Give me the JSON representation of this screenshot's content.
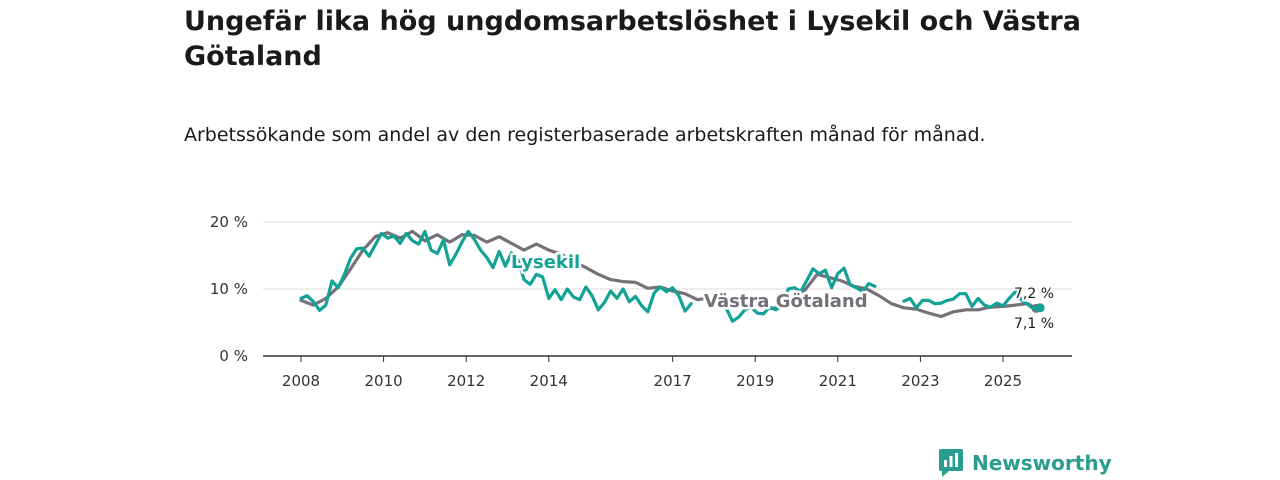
{
  "title": "Ungefär lika hög ungdomsarbetslöshet i Lysekil och Västra Götaland",
  "subtitle": "Arbetssökande som andel av den registerbaserade arbetskraften månad för månad.",
  "brand": {
    "name": "Newsworthy"
  },
  "colors": {
    "lysekil": "#12a296",
    "vastra": "#767178",
    "grid": "#dddddd",
    "axis": "#333333",
    "brand": "#2a9d8f"
  },
  "chart_data": {
    "type": "line",
    "title": "Ungefär lika hög ungdomsarbetslöshet i Lysekil och Västra Götaland",
    "subtitle": "Arbetssökande som andel av den registerbaserade arbetskraften månad för månad.",
    "xlabel": "",
    "ylabel": "",
    "ylim": [
      0,
      20
    ],
    "xlim": [
      2007.2,
      2026.5
    ],
    "y_ticks": [
      {
        "value": 0,
        "label": "0 %"
      },
      {
        "value": 10,
        "label": "10 %"
      },
      {
        "value": 20,
        "label": "20 %"
      }
    ],
    "x_ticks": [
      {
        "value": 2008,
        "label": "2008"
      },
      {
        "value": 2010,
        "label": "2010"
      },
      {
        "value": 2012,
        "label": "2012"
      },
      {
        "value": 2014,
        "label": "2014"
      },
      {
        "value": 2017,
        "label": "2017"
      },
      {
        "value": 2019,
        "label": "2019"
      },
      {
        "value": 2021,
        "label": "2021"
      },
      {
        "value": 2023,
        "label": "2023"
      },
      {
        "value": 2025,
        "label": "2025"
      }
    ],
    "series": [
      {
        "name": "Västra Götaland",
        "color": "#767178",
        "end_label": "7,1 %",
        "points": [
          [
            2008.0,
            8.3
          ],
          [
            2008.3,
            7.6
          ],
          [
            2008.6,
            8.6
          ],
          [
            2008.9,
            10.3
          ],
          [
            2009.2,
            13.0
          ],
          [
            2009.5,
            15.8
          ],
          [
            2009.8,
            17.8
          ],
          [
            2010.1,
            18.4
          ],
          [
            2010.4,
            17.6
          ],
          [
            2010.7,
            18.6
          ],
          [
            2011.0,
            17.2
          ],
          [
            2011.3,
            18.1
          ],
          [
            2011.6,
            17.0
          ],
          [
            2011.9,
            18.1
          ],
          [
            2012.2,
            18.0
          ],
          [
            2012.5,
            17.0
          ],
          [
            2012.8,
            17.8
          ],
          [
            2013.1,
            16.8
          ],
          [
            2013.4,
            15.8
          ],
          [
            2013.7,
            16.7
          ],
          [
            2014.0,
            15.8
          ],
          [
            2014.3,
            15.2
          ],
          [
            2014.6,
            14.1
          ],
          [
            2014.9,
            13.2
          ],
          [
            2015.2,
            12.2
          ],
          [
            2015.5,
            11.4
          ],
          [
            2015.8,
            11.1
          ],
          [
            2016.1,
            11.0
          ],
          [
            2016.4,
            10.1
          ],
          [
            2016.7,
            10.3
          ],
          [
            2017.0,
            9.7
          ],
          [
            2017.3,
            9.3
          ],
          [
            2017.6,
            8.4
          ],
          [
            2017.9,
            8.7
          ]
        ],
        "points_2": [
          [
            2019.3,
            7.1
          ],
          [
            2019.6,
            7.2
          ],
          [
            2019.9,
            8.2
          ],
          [
            2020.2,
            9.8
          ],
          [
            2020.5,
            12.2
          ],
          [
            2020.8,
            11.7
          ],
          [
            2021.1,
            11.2
          ],
          [
            2021.4,
            10.4
          ],
          [
            2021.7,
            10.0
          ],
          [
            2022.0,
            9.0
          ],
          [
            2022.3,
            7.8
          ],
          [
            2022.6,
            7.2
          ],
          [
            2022.9,
            7.0
          ],
          [
            2023.2,
            6.4
          ],
          [
            2023.5,
            5.9
          ],
          [
            2023.8,
            6.6
          ],
          [
            2024.1,
            6.9
          ],
          [
            2024.4,
            6.9
          ],
          [
            2024.7,
            7.3
          ],
          [
            2025.0,
            7.4
          ],
          [
            2025.3,
            7.6
          ],
          [
            2025.6,
            7.8
          ],
          [
            2025.8,
            7.1
          ]
        ]
      },
      {
        "name": "Lysekil",
        "color": "#12a296",
        "end_label": "7,2 %",
        "points": [
          [
            2008.0,
            8.6
          ],
          [
            2008.15,
            9.0
          ],
          [
            2008.3,
            8.1
          ],
          [
            2008.45,
            6.8
          ],
          [
            2008.6,
            7.6
          ],
          [
            2008.75,
            11.2
          ],
          [
            2008.9,
            10.2
          ],
          [
            2009.05,
            12.2
          ],
          [
            2009.2,
            14.6
          ],
          [
            2009.35,
            16.0
          ],
          [
            2009.5,
            16.1
          ],
          [
            2009.65,
            14.9
          ],
          [
            2009.8,
            16.6
          ],
          [
            2009.95,
            18.3
          ],
          [
            2010.1,
            17.6
          ],
          [
            2010.25,
            17.9
          ],
          [
            2010.4,
            16.8
          ],
          [
            2010.55,
            18.3
          ],
          [
            2010.7,
            17.2
          ],
          [
            2010.85,
            16.7
          ],
          [
            2011.0,
            18.6
          ],
          [
            2011.15,
            15.8
          ],
          [
            2011.3,
            15.3
          ],
          [
            2011.45,
            17.3
          ],
          [
            2011.6,
            13.6
          ],
          [
            2011.75,
            15.2
          ],
          [
            2011.9,
            17.0
          ],
          [
            2012.05,
            18.6
          ],
          [
            2012.2,
            17.4
          ],
          [
            2012.35,
            15.8
          ],
          [
            2012.5,
            14.7
          ],
          [
            2012.65,
            13.2
          ],
          [
            2012.8,
            15.6
          ],
          [
            2012.95,
            13.4
          ],
          [
            2013.1,
            15.4
          ],
          [
            2013.25,
            14.5
          ],
          [
            2013.4,
            11.4
          ],
          [
            2013.55,
            10.7
          ],
          [
            2013.7,
            12.2
          ],
          [
            2013.85,
            11.8
          ],
          [
            2014.0,
            8.6
          ],
          [
            2014.15,
            9.9
          ],
          [
            2014.3,
            8.4
          ],
          [
            2014.45,
            10.0
          ],
          [
            2014.6,
            8.8
          ],
          [
            2014.75,
            8.4
          ],
          [
            2014.9,
            10.3
          ],
          [
            2015.05,
            9.0
          ],
          [
            2015.2,
            6.9
          ],
          [
            2015.35,
            8.0
          ],
          [
            2015.5,
            9.7
          ],
          [
            2015.65,
            8.6
          ],
          [
            2015.8,
            10.0
          ],
          [
            2015.95,
            8.1
          ],
          [
            2016.1,
            8.9
          ],
          [
            2016.25,
            7.5
          ],
          [
            2016.4,
            6.6
          ],
          [
            2016.55,
            9.4
          ],
          [
            2016.7,
            10.3
          ],
          [
            2016.85,
            9.6
          ],
          [
            2017.0,
            10.2
          ],
          [
            2017.15,
            9.0
          ],
          [
            2017.3,
            6.7
          ],
          [
            2017.45,
            7.8
          ]
        ],
        "points_2": [
          [
            2018.3,
            7.1
          ],
          [
            2018.45,
            5.2
          ],
          [
            2018.6,
            5.8
          ],
          [
            2018.75,
            6.9
          ],
          [
            2018.9,
            7.3
          ],
          [
            2019.05,
            6.4
          ],
          [
            2019.2,
            6.3
          ],
          [
            2019.35,
            7.3
          ],
          [
            2019.5,
            6.9
          ],
          [
            2019.65,
            7.6
          ],
          [
            2019.8,
            10.0
          ],
          [
            2019.95,
            10.2
          ],
          [
            2020.1,
            9.6
          ],
          [
            2020.25,
            11.3
          ],
          [
            2020.4,
            13.0
          ],
          [
            2020.55,
            12.3
          ],
          [
            2020.7,
            12.8
          ],
          [
            2020.85,
            10.2
          ],
          [
            2021.0,
            12.3
          ],
          [
            2021.15,
            13.1
          ],
          [
            2021.3,
            10.6
          ],
          [
            2021.45,
            10.2
          ],
          [
            2021.6,
            9.6
          ],
          [
            2021.75,
            10.8
          ],
          [
            2021.9,
            10.4
          ]
        ],
        "points_3": [
          [
            2022.6,
            8.2
          ],
          [
            2022.75,
            8.6
          ],
          [
            2022.9,
            7.2
          ],
          [
            2023.05,
            8.3
          ],
          [
            2023.2,
            8.3
          ],
          [
            2023.35,
            7.8
          ],
          [
            2023.5,
            7.9
          ],
          [
            2023.65,
            8.3
          ],
          [
            2023.8,
            8.5
          ],
          [
            2023.95,
            9.3
          ],
          [
            2024.1,
            9.3
          ],
          [
            2024.25,
            7.4
          ],
          [
            2024.4,
            8.6
          ],
          [
            2024.55,
            7.6
          ],
          [
            2024.7,
            7.3
          ],
          [
            2024.85,
            7.9
          ],
          [
            2025.0,
            7.5
          ],
          [
            2025.15,
            8.6
          ],
          [
            2025.3,
            9.6
          ],
          [
            2025.45,
            8.3
          ],
          [
            2025.6,
            7.7
          ],
          [
            2025.75,
            7.0
          ],
          [
            2025.9,
            7.2
          ]
        ]
      }
    ]
  }
}
